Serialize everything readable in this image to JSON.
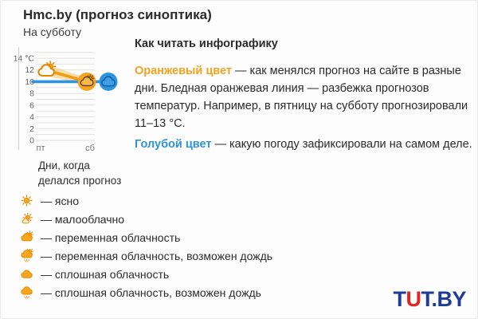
{
  "header": {
    "title": "Hmc.by (прогноз синоптика)",
    "subtitle": "На субботу"
  },
  "chart_data": {
    "type": "line",
    "title": "Hmc.by (прогноз синоптика)",
    "subtitle": "На субботу",
    "x_categories": [
      "пт",
      "сб"
    ],
    "x_caption": "Дни, когда делался прогноз",
    "ylim": [
      0,
      15
    ],
    "yticks": [
      14,
      12,
      10,
      8,
      6,
      4,
      2,
      0
    ],
    "y_unit": "°C",
    "grid": true,
    "series": [
      {
        "name": "прогноз синоптика (оранжевый)",
        "color": "#F39C12",
        "values": [
          12,
          10
        ],
        "point_icons": [
          "cloud-sun-icon",
          "cloud-sun-icon"
        ]
      },
      {
        "name": "фактическая погода (голубой)",
        "color": "#2E93DC",
        "values": [
          10,
          10
        ],
        "point_icons": [
          "cloud-icon"
        ]
      }
    ],
    "band": {
      "name": "разбежка прогнозов температур",
      "color": "#F7C66F",
      "upper": [
        13,
        10.6
      ],
      "lower": [
        11,
        9.4
      ]
    }
  },
  "explanation": {
    "heading": "Как читать инфографику",
    "orange_term": "Оранжевый цвет",
    "orange_text": " — как менялся прогноз на сайте в разные дни. Бледная оранжевая линия — разбежка прогнозов температур. Например, в пятницу на субботу прогнозировали 11–13 °С.",
    "blue_term": "Голубой цвет",
    "blue_text": " — какую погоду зафиксировали на самом деле.",
    "orange_color": "#F5A11E",
    "blue_color": "#2E93DC"
  },
  "legend": {
    "items": [
      {
        "icon": "sun-icon",
        "label": "— ясно"
      },
      {
        "icon": "sun-small-cloud-icon",
        "label": "— малооблачно"
      },
      {
        "icon": "cloud-sun-icon",
        "label": "— переменная облачность"
      },
      {
        "icon": "cloud-sun-rain-icon",
        "label": "— переменная облачность, возможен дождь"
      },
      {
        "icon": "cloud-icon",
        "label": "— сплошная облачность"
      },
      {
        "icon": "cloud-rain-icon",
        "label": "— сплошная облачность, возможен дождь"
      }
    ]
  },
  "branding": {
    "logo_part1": "TUT",
    "logo_u": "U",
    "logo_part2": "T.BY",
    "logo_t1": "T",
    "navy": "#1d3c99",
    "red": "#E3251E"
  }
}
